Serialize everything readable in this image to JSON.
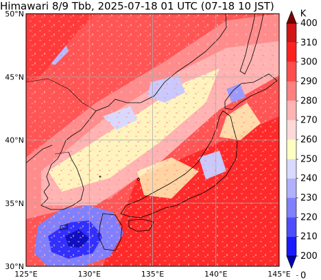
{
  "title": "Himawari 8/9 Tbb, 2025-07-18 01 UTC (07-18 10 JST)",
  "map": {
    "lon_range": [
      125,
      145
    ],
    "lat_range": [
      30,
      50
    ],
    "lon_ticks": [
      "125°E",
      "130°E",
      "135°E",
      "140°E",
      "145°E"
    ],
    "lat_ticks": [
      "30°N",
      "35°N",
      "40°N",
      "45°N",
      "50°N"
    ],
    "gridlines": true
  },
  "colorbar": {
    "unit": "K",
    "labels": [
      "400",
      "310",
      "300",
      "290",
      "280",
      "270",
      "260",
      "250",
      "240",
      "230",
      "220",
      "210",
      "200",
      "0"
    ],
    "colors": [
      "#7a0000",
      "#d21414",
      "#ff2020",
      "#ff4d4d",
      "#ff8080",
      "#ffb3b3",
      "#ffd9d9",
      "#ffffc0",
      "#d9d9ff",
      "#b0b0ff",
      "#8080ff",
      "#4d4dff",
      "#1a1aff",
      "#0000b0"
    ],
    "extend": "both"
  }
}
